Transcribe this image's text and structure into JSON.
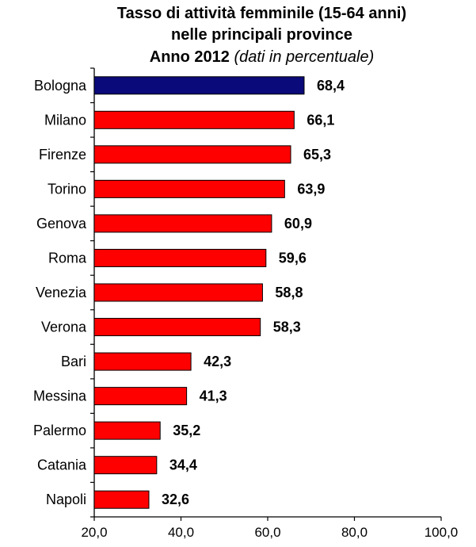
{
  "title": {
    "line1": "Tasso di attività femminile (15-64 anni)",
    "line2": "nelle principali province",
    "line3_main": "Anno  2012",
    "line3_sub": "(dati in percentuale)"
  },
  "colors": {
    "highlight": "#0a0a7a",
    "bar": "#ff0000",
    "outline": "#000000"
  },
  "chart_data": {
    "type": "bar",
    "orientation": "horizontal",
    "categories": [
      "Bologna",
      "Milano",
      "Firenze",
      "Torino",
      "Genova",
      "Roma",
      "Venezia",
      "Verona",
      "Bari",
      "Messina",
      "Palermo",
      "Catania",
      "Napoli"
    ],
    "values": [
      68.4,
      66.1,
      65.3,
      63.9,
      60.9,
      59.6,
      58.8,
      58.3,
      42.3,
      41.3,
      35.2,
      34.4,
      32.6
    ],
    "value_labels": [
      "68,4",
      "66,1",
      "65,3",
      "63,9",
      "60,9",
      "59,6",
      "58,8",
      "58,3",
      "42,3",
      "41,3",
      "35,2",
      "34,4",
      "32,6"
    ],
    "highlighted_category": "Bologna",
    "xlim": [
      20,
      100
    ],
    "xticks": [
      20,
      40,
      60,
      80,
      100
    ],
    "xtick_labels": [
      "20,0",
      "40,0",
      "60,0",
      "80,0",
      "100,0"
    ],
    "grid": false,
    "legend": "none"
  }
}
